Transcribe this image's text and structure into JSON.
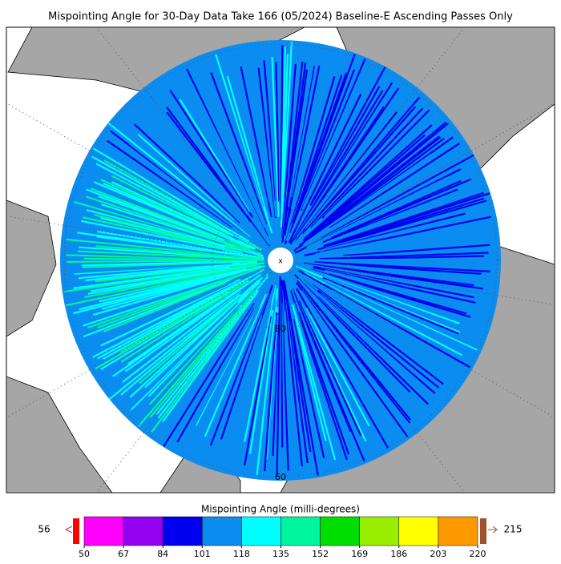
{
  "title": "Mispointing Angle for 30-Day Data Take 166 (05/2024) Baseline-E Ascending Passes Only",
  "map": {
    "latitude_labels": [
      "80",
      "60"
    ]
  },
  "colorbar": {
    "label": "Mispointing Angle (milli-degrees)",
    "ticks": [
      50,
      67,
      84,
      101,
      118,
      135,
      152,
      169,
      186,
      203,
      220
    ],
    "colors": [
      "#ff00ff",
      "#9400f0",
      "#0000ee",
      "#0a8cf0",
      "#00ffff",
      "#00f5a0",
      "#00dd00",
      "#99ee00",
      "#ffff00",
      "#ff9900"
    ],
    "under_label": "56",
    "under_color": "#ff0000",
    "over_label": "215",
    "over_color": "#a0522d"
  }
}
